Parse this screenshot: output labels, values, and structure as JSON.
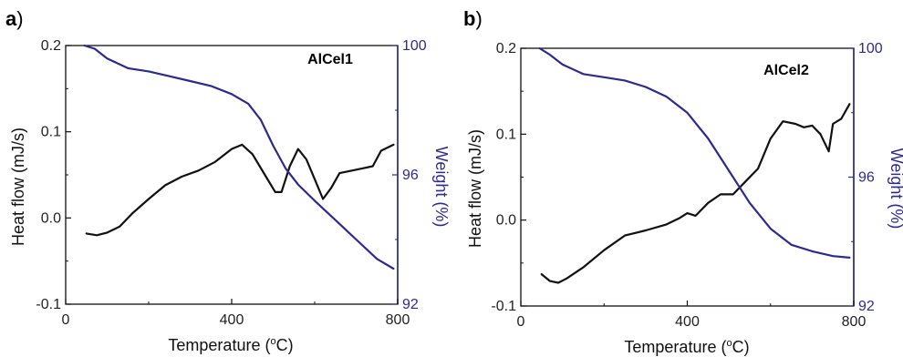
{
  "chart_data": [
    {
      "panel_label": "a",
      "panel_label_suffix": ")",
      "type": "line",
      "title": "AlCel1",
      "xlabel_prefix": "Temperature (",
      "xlabel_sup": "o",
      "xlabel_suffix": "C)",
      "ylabel": "Heat flow (mJ/s)",
      "y2label": "Weight (%)",
      "xlim": [
        0,
        800
      ],
      "ylim": [
        -0.1,
        0.2
      ],
      "y2lim": [
        92,
        100
      ],
      "xticks": [
        0,
        400,
        800
      ],
      "yticks": [
        -0.1,
        0.0,
        0.1,
        0.2
      ],
      "y2ticks": [
        92,
        96,
        100
      ],
      "ytick_labels": [
        "-0.1",
        "0.0",
        "0.1",
        "0.2"
      ],
      "xtick_labels": [
        "0",
        "400",
        "800"
      ],
      "y2tick_labels": [
        "92",
        "96",
        "100"
      ],
      "series": [
        {
          "axis": "left",
          "color": "#111111",
          "x": [
            50,
            75,
            100,
            130,
            160,
            200,
            240,
            280,
            320,
            360,
            400,
            425,
            450,
            480,
            505,
            520,
            540,
            560,
            580,
            600,
            620,
            640,
            660,
            690,
            720,
            740,
            760,
            790
          ],
          "y": [
            -0.018,
            -0.02,
            -0.017,
            -0.01,
            0.005,
            0.022,
            0.038,
            0.048,
            0.055,
            0.065,
            0.08,
            0.085,
            0.074,
            0.05,
            0.03,
            0.03,
            0.06,
            0.08,
            0.068,
            0.045,
            0.022,
            0.035,
            0.052,
            0.055,
            0.058,
            0.06,
            0.078,
            0.085
          ]
        },
        {
          "axis": "right",
          "color": "#2e2a8c",
          "x": [
            45,
            70,
            100,
            150,
            200,
            250,
            300,
            350,
            400,
            440,
            470,
            500,
            530,
            560,
            600,
            650,
            700,
            750,
            790
          ],
          "y": [
            100.0,
            99.9,
            99.6,
            99.3,
            99.2,
            99.05,
            98.9,
            98.75,
            98.5,
            98.2,
            97.7,
            96.9,
            96.2,
            95.7,
            95.2,
            94.6,
            94.0,
            93.4,
            93.1
          ]
        }
      ]
    },
    {
      "panel_label": "b",
      "panel_label_suffix": ")",
      "type": "line",
      "title": "AlCel2",
      "xlabel_prefix": "Temperature (",
      "xlabel_sup": "o",
      "xlabel_suffix": "C)",
      "ylabel": "Heat flow (mJ/s)",
      "y2label": "Weight (%)",
      "xlim": [
        0,
        800
      ],
      "ylim": [
        -0.1,
        0.2
      ],
      "y2lim": [
        92,
        100
      ],
      "xticks": [
        0,
        400,
        800
      ],
      "yticks": [
        -0.1,
        0.0,
        0.1,
        0.2
      ],
      "y2ticks": [
        92,
        96,
        100
      ],
      "ytick_labels": [
        "-0.1",
        "0.0",
        "0.1",
        "0.2"
      ],
      "xtick_labels": [
        "0",
        "400",
        "800"
      ],
      "y2tick_labels": [
        "92",
        "96",
        "100"
      ],
      "series": [
        {
          "axis": "left",
          "color": "#111111",
          "x": [
            50,
            70,
            90,
            110,
            150,
            200,
            250,
            300,
            350,
            380,
            400,
            420,
            450,
            480,
            510,
            540,
            570,
            600,
            630,
            660,
            680,
            700,
            720,
            740,
            750,
            770,
            790
          ],
          "y": [
            -0.063,
            -0.071,
            -0.073,
            -0.068,
            -0.055,
            -0.035,
            -0.018,
            -0.012,
            -0.005,
            0.002,
            0.008,
            0.005,
            0.02,
            0.03,
            0.03,
            0.045,
            0.06,
            0.095,
            0.115,
            0.112,
            0.108,
            0.11,
            0.1,
            0.08,
            0.112,
            0.118,
            0.135
          ]
        },
        {
          "axis": "right",
          "color": "#2e2a8c",
          "x": [
            45,
            70,
            100,
            150,
            200,
            250,
            300,
            350,
            400,
            450,
            500,
            550,
            600,
            650,
            700,
            750,
            790
          ],
          "y": [
            100.0,
            99.8,
            99.5,
            99.2,
            99.1,
            99.0,
            98.8,
            98.5,
            98.0,
            97.2,
            96.2,
            95.2,
            94.4,
            93.9,
            93.7,
            93.55,
            93.5
          ]
        }
      ]
    }
  ]
}
